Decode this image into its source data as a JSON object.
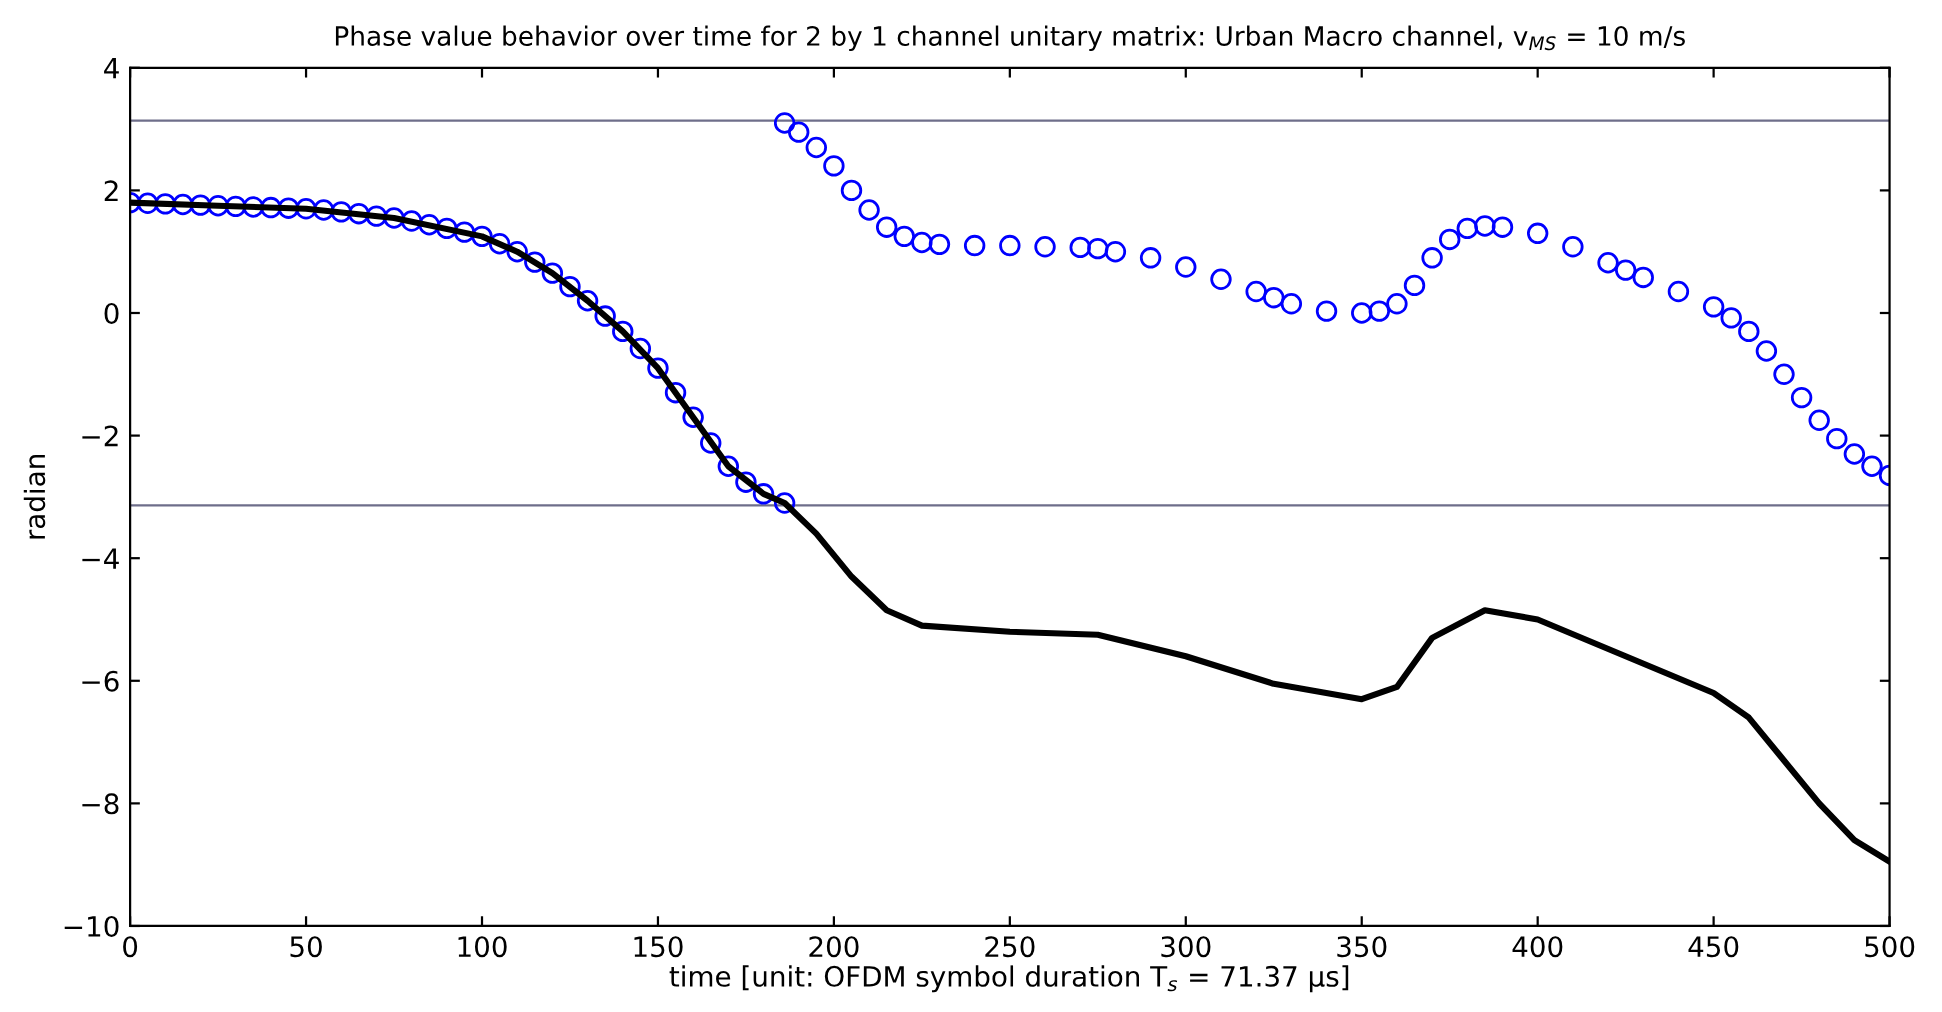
{
  "chart_data": {
    "type": "line",
    "title": "Phase value behavior over time for 2 by 1 channel unitary matrix: Urban Macro channel, v$_{MS}$ = 10 m/s",
    "xlabel": "time [unit: OFDM symbol duration T$_{s}$ = 71.37 μs]",
    "ylabel": "radian",
    "xlim": [
      0,
      500
    ],
    "ylim": [
      -10,
      4
    ],
    "xticks": [
      0,
      50,
      100,
      150,
      200,
      250,
      300,
      350,
      400,
      450,
      500
    ],
    "yticks": [
      {
        "value": -10,
        "label": "−10"
      },
      {
        "value": -8,
        "label": "−8"
      },
      {
        "value": -6,
        "label": "−6"
      },
      {
        "value": -4,
        "label": "−4"
      },
      {
        "value": -2,
        "label": "−2"
      },
      0,
      2,
      4
    ],
    "grid": false,
    "legend": false,
    "ref_lines": [
      {
        "axis": "y",
        "value": 3.14,
        "color": "#6e6e8a"
      },
      {
        "axis": "y",
        "value": -3.14,
        "color": "#6e6e8a"
      }
    ],
    "series": [
      {
        "color": "#000000",
        "marker": "none",
        "line_style": "solid",
        "x": [
          0,
          25,
          50,
          75,
          100,
          110,
          120,
          130,
          140,
          150,
          160,
          170,
          180,
          186,
          195,
          205,
          215,
          225,
          250,
          275,
          300,
          325,
          350,
          360,
          370,
          385,
          400,
          425,
          450,
          460,
          470,
          480,
          490,
          500
        ],
        "values": [
          1.8,
          1.75,
          1.7,
          1.55,
          1.25,
          1.0,
          0.65,
          0.2,
          -0.3,
          -0.9,
          -1.7,
          -2.5,
          -2.95,
          -3.1,
          -3.6,
          -4.3,
          -4.85,
          -5.1,
          -5.2,
          -5.25,
          -5.6,
          -6.05,
          -6.3,
          -6.1,
          -5.3,
          -4.85,
          -5.0,
          -5.6,
          -6.2,
          -6.6,
          -7.3,
          -8.0,
          -8.6,
          -8.95
        ]
      },
      {
        "type": "scatter",
        "color": "#0000ff",
        "marker": "circle",
        "x": [
          0,
          5,
          10,
          15,
          20,
          25,
          30,
          35,
          40,
          45,
          50,
          55,
          60,
          65,
          70,
          75,
          80,
          85,
          90,
          95,
          100,
          105,
          110,
          115,
          120,
          125,
          130,
          135,
          140,
          145,
          150,
          155,
          160,
          165,
          170,
          175,
          180,
          186,
          186,
          190,
          195,
          200,
          205,
          210,
          215,
          220,
          225,
          230,
          240,
          250,
          260,
          270,
          275,
          280,
          290,
          300,
          310,
          320,
          325,
          330,
          340,
          350,
          355,
          360,
          365,
          370,
          375,
          380,
          385,
          390,
          400,
          410,
          420,
          425,
          430,
          440,
          450,
          455,
          460,
          465,
          470,
          475,
          480,
          485,
          490,
          495,
          500
        ],
        "values": [
          1.8,
          1.79,
          1.78,
          1.77,
          1.76,
          1.75,
          1.74,
          1.73,
          1.72,
          1.71,
          1.7,
          1.68,
          1.65,
          1.62,
          1.58,
          1.55,
          1.5,
          1.44,
          1.38,
          1.32,
          1.25,
          1.13,
          1.0,
          0.83,
          0.65,
          0.43,
          0.2,
          -0.05,
          -0.3,
          -0.58,
          -0.9,
          -1.3,
          -1.7,
          -2.12,
          -2.5,
          -2.76,
          -2.95,
          -3.1,
          3.1,
          2.95,
          2.7,
          2.4,
          2.0,
          1.68,
          1.4,
          1.25,
          1.15,
          1.12,
          1.1,
          1.1,
          1.08,
          1.07,
          1.05,
          1.0,
          0.9,
          0.75,
          0.55,
          0.35,
          0.25,
          0.15,
          0.03,
          0.0,
          0.03,
          0.15,
          0.45,
          0.9,
          1.2,
          1.38,
          1.42,
          1.4,
          1.3,
          1.08,
          0.82,
          0.7,
          0.58,
          0.35,
          0.1,
          -0.08,
          -0.3,
          -0.62,
          -1.0,
          -1.38,
          -1.75,
          -2.05,
          -2.3,
          -2.5,
          -2.65
        ]
      }
    ]
  }
}
